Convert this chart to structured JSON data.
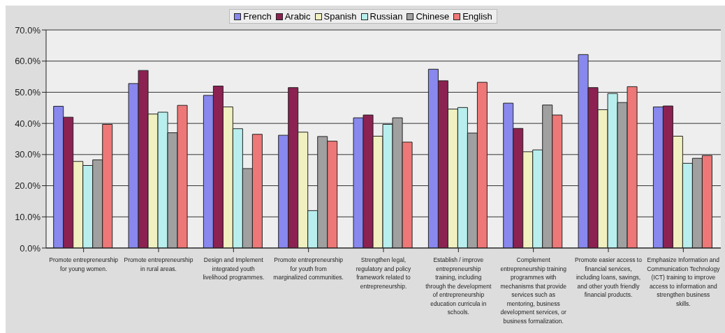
{
  "chart_data": {
    "type": "bar",
    "categories": [
      "Promote entrepreneurship for young women.",
      "Promote entrepreneurship in rural areas.",
      "Design and Implement integrated youth livelihood programmes.",
      "Promote entrepreneurship for youth from marginalized communities.",
      "Strengthen legal, regulatory and policy framework related to entrepreneurship.",
      "Establish / improve entrepreneurship training, including through the development of entrepreneurship education curricula in schools.",
      "Complement entrepreneurship training programmes with mechanisms that provide services such as mentoring, business development services, or business formalization.",
      "Promote easier access to financial services, including loans, savings, and other youth friendly financial products.",
      "Emphasize Information and Communication Technology (ICT) training to improve access to information and strengthen business skills."
    ],
    "series": [
      {
        "name": "French",
        "color": "#8888ee",
        "values": [
          45.5,
          52.8,
          49,
          36.2,
          41.8,
          57.4,
          46.5,
          62.1,
          45.3
        ]
      },
      {
        "name": "Arabic",
        "color": "#8b2252",
        "values": [
          42,
          57,
          52,
          51.5,
          42.7,
          53.7,
          38.4,
          51.5,
          45.6
        ]
      },
      {
        "name": "Spanish",
        "color": "#f0f0c0",
        "values": [
          27.8,
          43,
          45.3,
          37.2,
          35.9,
          44.6,
          30.9,
          44.4,
          35.9
        ]
      },
      {
        "name": "Russian",
        "color": "#b8eeee",
        "values": [
          26.5,
          43.6,
          38.3,
          12,
          39.7,
          45.1,
          31.5,
          49.6,
          27.2
        ]
      },
      {
        "name": "Chinese",
        "color": "#a0a0a0",
        "values": [
          28.3,
          37,
          25.5,
          35.8,
          41.8,
          36.9,
          45.9,
          46.7,
          28.8
        ]
      },
      {
        "name": "English",
        "color": "#ee7777",
        "values": [
          39.7,
          45.8,
          36.5,
          34.3,
          34,
          53.2,
          42.7,
          51.8,
          29.7
        ]
      }
    ],
    "ylim": [
      0,
      70
    ],
    "yticks": [
      {
        "value": 0,
        "label": "0.0%"
      },
      {
        "value": 10,
        "label": "10.0%"
      },
      {
        "value": 20,
        "label": "20.0%"
      },
      {
        "value": 30,
        "label": "30.0%"
      },
      {
        "value": 40,
        "label": "40.0%"
      },
      {
        "value": 50,
        "label": "50.0%"
      },
      {
        "value": 60,
        "label": "60.0%"
      },
      {
        "value": 70,
        "label": "70.0%"
      }
    ],
    "grid": "y",
    "legend": "top"
  }
}
